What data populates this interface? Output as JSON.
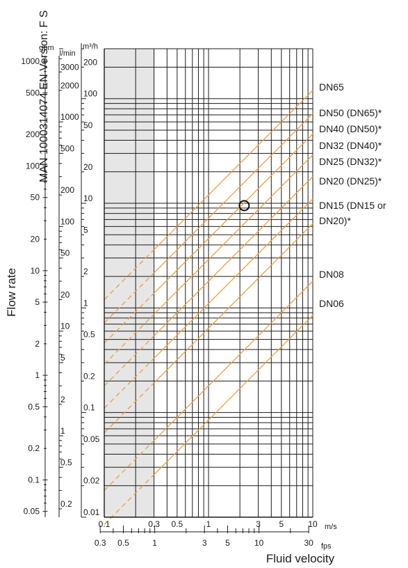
{
  "watermark": "MAN  1000314074  EN  Version: F  S",
  "chart_data": {
    "type": "line",
    "xlabel": "Fluid velocity",
    "ylabel": "Flow rate",
    "x_units": {
      "primary": "m/s",
      "secondary": "fps"
    },
    "y_units": {
      "m3h": "m³/h",
      "lmin": "l/min",
      "gpm": "gpm"
    },
    "xlim": [
      0.1,
      10
    ],
    "ylim": [
      0.01,
      300
    ],
    "x_scale": "log",
    "y_scale": "log",
    "grid": true,
    "shaded_ranges": [
      [
        0.1,
        0.3
      ]
    ],
    "x_ticks_ms": [
      "0.1",
      "0.3",
      "0.5",
      "1",
      "3",
      "5",
      "10"
    ],
    "x_ticks_fps": [
      "0.3",
      "0.5",
      "1",
      "3",
      "5",
      "10",
      "30"
    ],
    "y_ticks_m3h": [
      "200",
      "100",
      "50",
      "20",
      "10",
      "5",
      "2",
      "1",
      "0.5",
      "0.2",
      "0.1",
      "0.05",
      "0.02",
      "0.01"
    ],
    "y_ticks_lmin": [
      "3000",
      "2000",
      "1000",
      "500",
      "200",
      "100",
      "50",
      "20",
      "10",
      "5",
      "2",
      "1",
      "0.5",
      "0.2"
    ],
    "y_ticks_gpm": [
      "1000",
      "500",
      "200",
      "100",
      "50",
      "20",
      "10",
      "5",
      "2",
      "1",
      "0.5",
      "0.2",
      "0.1",
      "0.05"
    ],
    "series": [
      {
        "name": "DN65",
        "x": [
          0.1,
          10
        ],
        "y": [
          1.2,
          120
        ]
      },
      {
        "name": "DN50 (DN65)*",
        "x": [
          0.1,
          10
        ],
        "y": [
          0.72,
          72
        ]
      },
      {
        "name": "DN40 (DN50)*",
        "x": [
          0.1,
          10
        ],
        "y": [
          0.46,
          46
        ]
      },
      {
        "name": "DN32 (DN40)*",
        "x": [
          0.1,
          10
        ],
        "y": [
          0.29,
          29
        ]
      },
      {
        "name": "DN25 (DN32)*",
        "x": [
          0.1,
          10
        ],
        "y": [
          0.18,
          18
        ]
      },
      {
        "name": "DN20 (DN25)*",
        "x": [
          0.1,
          10
        ],
        "y": [
          0.11,
          11
        ]
      },
      {
        "name": "DN15 (DN15 or DN20)*",
        "x": [
          0.1,
          10
        ],
        "y": [
          0.064,
          6.4
        ]
      },
      {
        "name": "DN08",
        "x": [
          0.1,
          10
        ],
        "y": [
          0.018,
          1.8
        ]
      },
      {
        "name": "DN06",
        "x": [
          0.1,
          10
        ],
        "y": [
          0.0085,
          0.85
        ]
      }
    ],
    "marker": {
      "x": 2.2,
      "y": 9.5
    },
    "colors": {
      "series": "#e8a040",
      "grid": "#1a1a1a",
      "shade": "#e6e6e6"
    }
  }
}
